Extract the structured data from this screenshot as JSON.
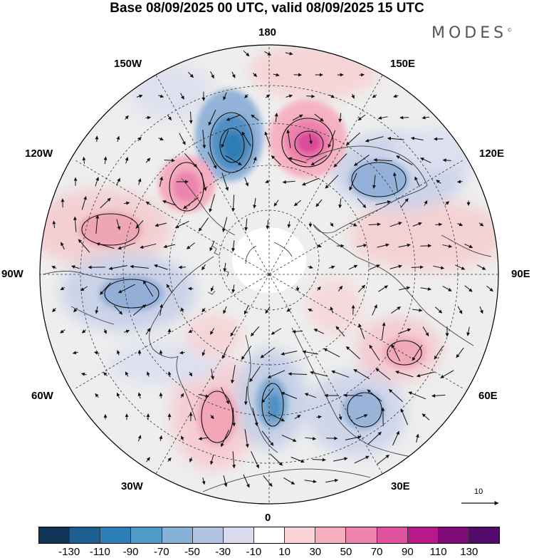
{
  "title": "Base 08/09/2025 00 UTC, valid 08/09/2025 15 UTC",
  "brand": "MODES",
  "brand_mark": "©",
  "longitude_labels": {
    "top": "180",
    "bottom": "0",
    "left": "90W",
    "right": "90E",
    "upper_left": "150W",
    "upper_right": "150E",
    "mid_left_upper": "120W",
    "mid_right_upper": "120E",
    "mid_left_lower": "60W",
    "mid_right_lower": "60E",
    "lower_left": "30W",
    "lower_right": "30E"
  },
  "reference_vector_label": "10",
  "colorbar": {
    "ticks": [
      "-130",
      "-110",
      "-90",
      "-70",
      "-50",
      "-30",
      "-10",
      "10",
      "30",
      "50",
      "70",
      "90",
      "110",
      "130"
    ],
    "colors": [
      "#0f3556",
      "#1b5e8f",
      "#2c7fb8",
      "#4f9ac7",
      "#86b2d8",
      "#b2c4e2",
      "#dadbee",
      "#ffffff",
      "#f9d3d6",
      "#f4aebe",
      "#ee83ad",
      "#e0519e",
      "#b8198a",
      "#7f0c79",
      "#520a6b"
    ]
  },
  "anomalies": [
    {
      "name": "blue-low-kamchatka-side",
      "value": -90,
      "color": "#2c7fb8"
    },
    {
      "name": "pink-high-bering",
      "value": 90,
      "color": "#e0519e"
    },
    {
      "name": "blue-low-siberia",
      "value": -50,
      "color": "#86b2d8"
    },
    {
      "name": "pink-high-alaska",
      "value": 70,
      "color": "#ee83ad"
    },
    {
      "name": "pink-high-canada",
      "value": 50,
      "color": "#f4aebe"
    },
    {
      "name": "blue-low-hudson",
      "value": -50,
      "color": "#86b2d8"
    },
    {
      "name": "pink-high-atlantic",
      "value": 50,
      "color": "#f4aebe"
    },
    {
      "name": "blue-low-norway",
      "value": -70,
      "color": "#4f9ac7"
    },
    {
      "name": "blue-low-east-europe",
      "value": -50,
      "color": "#86b2d8"
    },
    {
      "name": "pink-high-central-asia",
      "value": 50,
      "color": "#f4aebe"
    },
    {
      "name": "pink-band-north-asia",
      "value": 30,
      "color": "#f9d3d6"
    }
  ]
}
